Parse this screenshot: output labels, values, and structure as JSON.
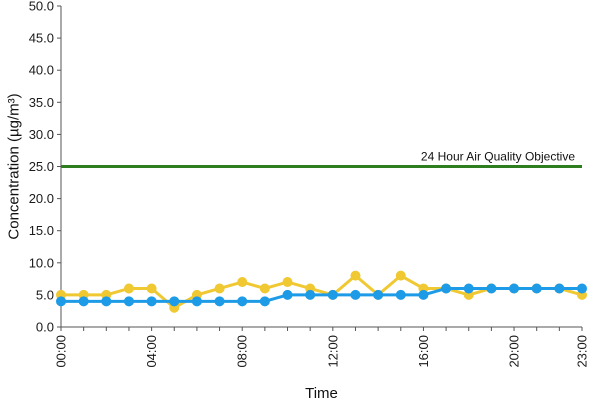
{
  "chart_data": {
    "type": "line",
    "xlabel": "Time",
    "ylabel": "Concentration (µg/m³)",
    "ylim": [
      0,
      50
    ],
    "yticks": [
      "0.0",
      "5.0",
      "10.0",
      "15.0",
      "20.0",
      "25.0",
      "30.0",
      "35.0",
      "40.0",
      "45.0",
      "50.0"
    ],
    "x": [
      "00:00",
      "01:00",
      "02:00",
      "03:00",
      "04:00",
      "05:00",
      "06:00",
      "07:00",
      "08:00",
      "09:00",
      "10:00",
      "11:00",
      "12:00",
      "13:00",
      "14:00",
      "15:00",
      "16:00",
      "17:00",
      "18:00",
      "19:00",
      "20:00",
      "21:00",
      "22:00",
      "23:00"
    ],
    "xtick_labels": [
      "00:00",
      "04:00",
      "08:00",
      "12:00",
      "16:00",
      "20:00",
      "23:00"
    ],
    "xtick_indices": [
      0,
      4,
      8,
      12,
      16,
      20,
      23
    ],
    "grid": false,
    "series": [
      {
        "color": "#f0c832",
        "values": [
          5,
          5,
          5,
          6,
          6,
          3,
          5,
          6,
          7,
          6,
          7,
          6,
          5,
          8,
          5,
          8,
          6,
          6,
          5,
          6,
          6,
          6,
          6,
          5
        ]
      },
      {
        "color": "#1e9be6",
        "values": [
          4,
          4,
          4,
          4,
          4,
          4,
          4,
          4,
          4,
          4,
          5,
          5,
          5,
          5,
          5,
          5,
          5,
          6,
          6,
          6,
          6,
          6,
          6,
          6
        ]
      }
    ],
    "reference_line": {
      "label": "24 Hour Air Quality Objective",
      "value": 25,
      "color": "#2e7d1e"
    }
  }
}
